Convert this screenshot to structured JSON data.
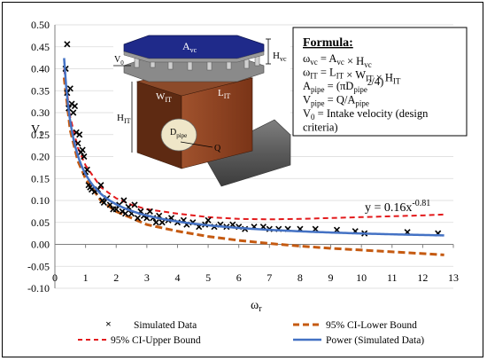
{
  "chart_data": {
    "type": "scatter",
    "xlabel": "ω",
    "xlabel_sub": "r",
    "ylabel": "V",
    "ylabel_sub": "r",
    "xlim": [
      0,
      13
    ],
    "ylim": [
      -0.1,
      0.5
    ],
    "x_ticks": [
      "0",
      "1",
      "2",
      "3",
      "4",
      "5",
      "6",
      "7",
      "8",
      "9",
      "10",
      "11",
      "12",
      "13"
    ],
    "y_ticks": [
      "-0.10",
      "-0.05",
      "0.00",
      "0.05",
      "0.10",
      "0.15",
      "0.20",
      "0.25",
      "0.30",
      "0.35",
      "0.40",
      "0.45",
      "0.50"
    ],
    "grid": "horizontal",
    "series": [
      {
        "name": "Simulated Data",
        "marker": "x",
        "color": "#000000",
        "points": [
          [
            0.35,
            0.4
          ],
          [
            0.4,
            0.456
          ],
          [
            0.4,
            0.345
          ],
          [
            0.45,
            0.31
          ],
          [
            0.5,
            0.355
          ],
          [
            0.55,
            0.32
          ],
          [
            0.6,
            0.3
          ],
          [
            0.65,
            0.315
          ],
          [
            0.7,
            0.255
          ],
          [
            0.75,
            0.23
          ],
          [
            0.8,
            0.25
          ],
          [
            0.85,
            0.21
          ],
          [
            0.9,
            0.215
          ],
          [
            0.95,
            0.2
          ],
          [
            1.0,
            0.165
          ],
          [
            1.05,
            0.17
          ],
          [
            1.1,
            0.135
          ],
          [
            1.15,
            0.13
          ],
          [
            1.2,
            0.125
          ],
          [
            1.3,
            0.12
          ],
          [
            1.4,
            0.125
          ],
          [
            1.5,
            0.135
          ],
          [
            1.55,
            0.1
          ],
          [
            1.6,
            0.095
          ],
          [
            1.7,
            0.105
          ],
          [
            1.8,
            0.09
          ],
          [
            1.9,
            0.08
          ],
          [
            2.0,
            0.08
          ],
          [
            2.1,
            0.09
          ],
          [
            2.2,
            0.075
          ],
          [
            2.25,
            0.1
          ],
          [
            2.3,
            0.07
          ],
          [
            2.4,
            0.085
          ],
          [
            2.5,
            0.07
          ],
          [
            2.6,
            0.09
          ],
          [
            2.7,
            0.06
          ],
          [
            2.8,
            0.075
          ],
          [
            2.9,
            0.065
          ],
          [
            3.0,
            0.06
          ],
          [
            3.1,
            0.075
          ],
          [
            3.2,
            0.06
          ],
          [
            3.3,
            0.05
          ],
          [
            3.4,
            0.065
          ],
          [
            3.5,
            0.05
          ],
          [
            3.7,
            0.055
          ],
          [
            3.8,
            0.06
          ],
          [
            4.0,
            0.05
          ],
          [
            4.2,
            0.055
          ],
          [
            4.3,
            0.045
          ],
          [
            4.5,
            0.05
          ],
          [
            4.7,
            0.04
          ],
          [
            4.9,
            0.045
          ],
          [
            5.0,
            0.055
          ],
          [
            5.2,
            0.04
          ],
          [
            5.4,
            0.045
          ],
          [
            5.6,
            0.04
          ],
          [
            5.8,
            0.045
          ],
          [
            6.0,
            0.04
          ],
          [
            6.2,
            0.035
          ],
          [
            6.5,
            0.04
          ],
          [
            6.8,
            0.04
          ],
          [
            7.0,
            0.035
          ],
          [
            7.3,
            0.035
          ],
          [
            7.6,
            0.035
          ],
          [
            8.0,
            0.035
          ],
          [
            8.5,
            0.035
          ],
          [
            9.2,
            0.033
          ],
          [
            9.8,
            0.03
          ],
          [
            10.1,
            0.025
          ],
          [
            11.5,
            0.028
          ],
          [
            12.5,
            0.025
          ]
        ]
      },
      {
        "name": "95% CI-Lower Bound",
        "style": "dashed-thick",
        "color": "#c55a11",
        "x": [
          0.3,
          0.5,
          0.75,
          1,
          1.5,
          2,
          2.5,
          3,
          4,
          5,
          6,
          7,
          8,
          9,
          10,
          11,
          12,
          12.7
        ],
        "y": [
          0.38,
          0.26,
          0.19,
          0.15,
          0.1,
          0.075,
          0.06,
          0.045,
          0.03,
          0.018,
          0.009,
          0.002,
          -0.004,
          -0.009,
          -0.013,
          -0.017,
          -0.021,
          -0.024
        ]
      },
      {
        "name": "95% CI-Upper Bound",
        "style": "dashed",
        "color": "#e31a1c",
        "x": [
          0.3,
          0.5,
          0.75,
          1,
          1.5,
          2,
          2.5,
          3,
          4,
          5,
          6,
          7,
          8,
          9,
          10,
          11,
          12,
          12.7
        ],
        "y": [
          0.4,
          0.29,
          0.22,
          0.18,
          0.13,
          0.105,
          0.09,
          0.08,
          0.07,
          0.062,
          0.058,
          0.057,
          0.058,
          0.06,
          0.062,
          0.064,
          0.066,
          0.068
        ]
      },
      {
        "name": "Power (Simulated Data)",
        "style": "solid",
        "color": "#4472c4",
        "fn": "power",
        "a": 0.16,
        "b": -0.81,
        "xrange": [
          0.3,
          12.7
        ]
      }
    ],
    "annotations": {
      "equation": "y = 0.16x",
      "equation_exp": "-0.81"
    },
    "legend_position": "bottom"
  },
  "formula_box": {
    "title": "Formula:",
    "lines": [
      {
        "lhs": "ω",
        "lhs_sub": "vc",
        "rhs": "=  A",
        "rhs_sub": "vc",
        "rhs2": " × H",
        "rhs2_sub": "vc"
      },
      {
        "lhs": "ω",
        "lhs_sub": "IT",
        "rhs": "=  L",
        "rhs_sub": "IT",
        "rhs2": " × W",
        "rhs2_sub": "IT",
        "rhs3": " × H",
        "rhs3_sub": "IT"
      },
      {
        "lhs": "A",
        "lhs_sub": "pipe",
        "rhs": " = (πD",
        "rhs_sub": "pipe",
        "rhs_sup": "2",
        "rhs2": "/4)"
      },
      {
        "lhs": "V",
        "lhs_sub": "pipe",
        "rhs": "= Q/A",
        "rhs_sub": "pipe"
      },
      {
        "lhs": "V",
        "lhs_sub": "0",
        "rhs": " =  Intake  velocity  (design"
      },
      {
        "lhs": "criteria)"
      }
    ]
  },
  "diagram_labels": {
    "avc": "A",
    "avc_sub": "vc",
    "hvc": "H",
    "hvc_sub": "vc",
    "v0": "V",
    "v0_sub": "0",
    "wit": "W",
    "wit_sub": "IT",
    "lit": "L",
    "lit_sub": "IT",
    "hit": "H",
    "hit_sub": "IT",
    "dpipe": "D",
    "dpipe_sub": "pipe",
    "q": "Q"
  }
}
